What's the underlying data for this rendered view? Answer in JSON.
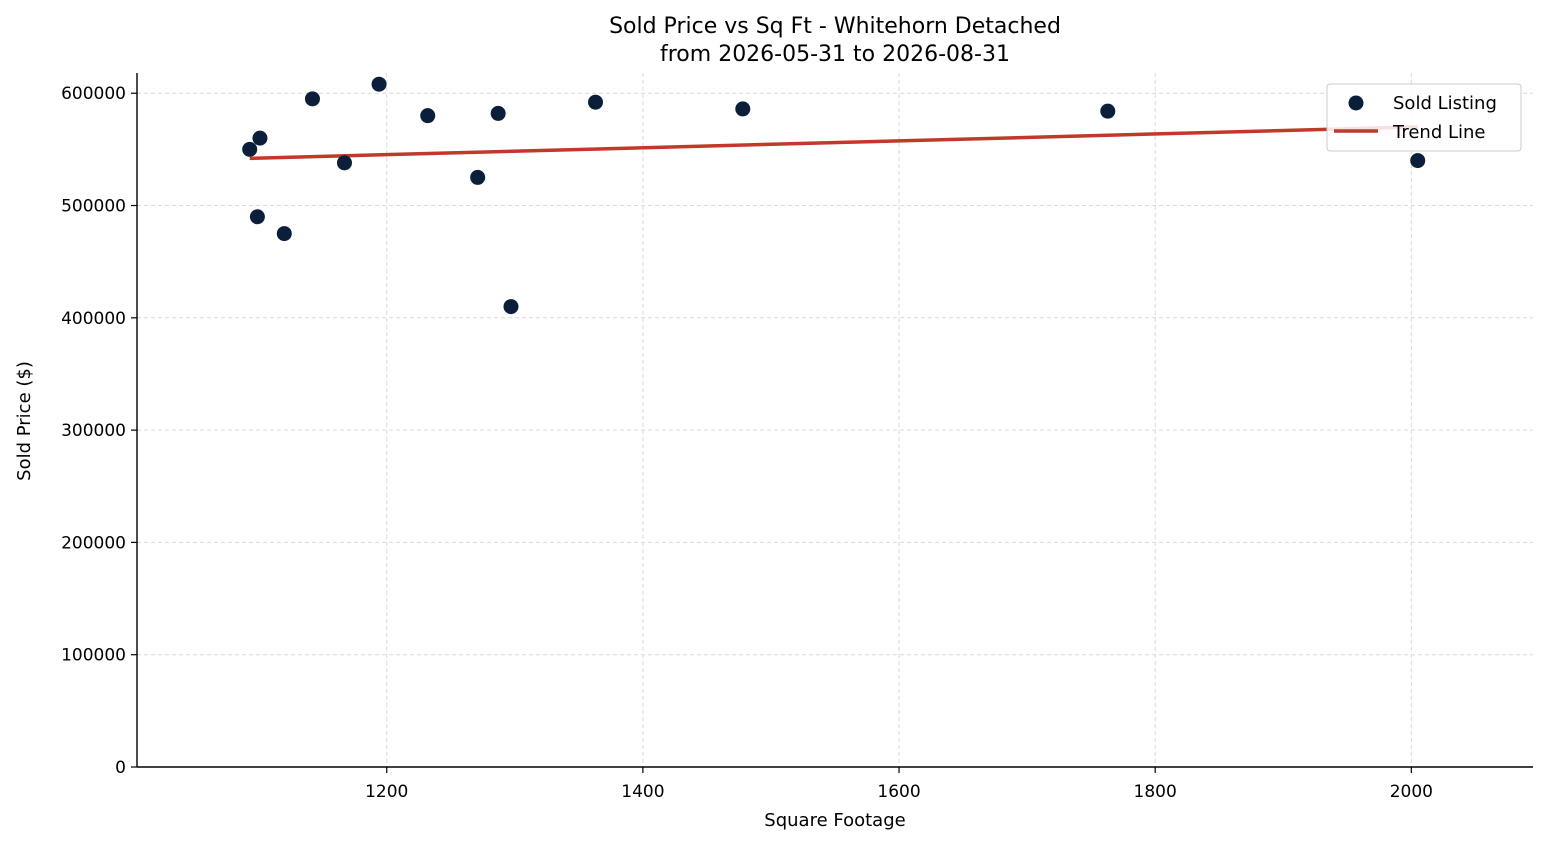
{
  "chart_data": {
    "type": "scatter",
    "title": "Sold Price vs Sq Ft - Whitehorn Detached",
    "subtitle": "from 2026-05-31 to 2026-08-31",
    "xlabel": "Square Footage",
    "ylabel": "Sold Price ($)",
    "xlim": [
      1005,
      2095
    ],
    "ylim": [
      0,
      618000
    ],
    "x_ticks": [
      1200,
      1400,
      1600,
      1800,
      2000
    ],
    "y_ticks": [
      0,
      100000,
      200000,
      300000,
      400000,
      500000,
      600000
    ],
    "grid": true,
    "legend_position": "top-right",
    "series": [
      {
        "name": "Sold Listing",
        "kind": "scatter",
        "color": "#0b1e3a",
        "x": [
          1093,
          1099,
          1101,
          1120,
          1142,
          1167,
          1194,
          1232,
          1271,
          1287,
          1297,
          1363,
          1478,
          1763,
          2005
        ],
        "y": [
          550000,
          490000,
          560000,
          475000,
          595000,
          538000,
          608000,
          580000,
          525000,
          582000,
          410000,
          592000,
          586000,
          584000,
          540000
        ]
      },
      {
        "name": "Trend Line",
        "kind": "line",
        "color": "#c0392b",
        "x": [
          1093,
          2005
        ],
        "y": [
          542000,
          570000
        ]
      }
    ]
  }
}
